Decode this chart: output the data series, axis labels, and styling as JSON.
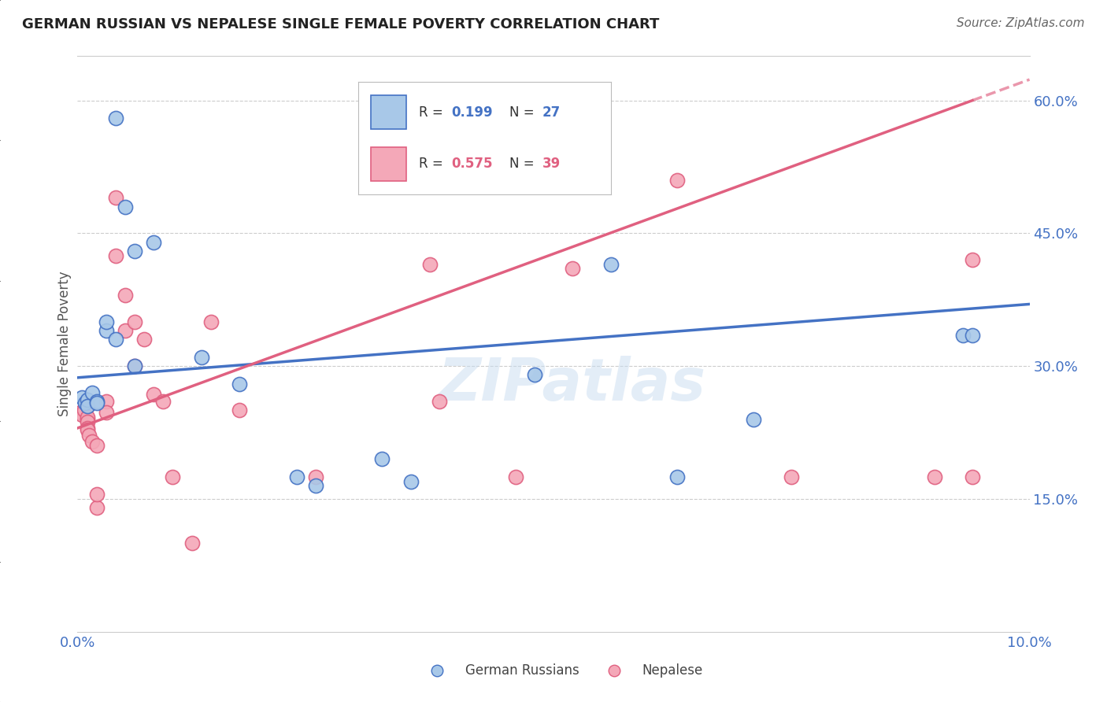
{
  "title": "GERMAN RUSSIAN VS NEPALESE SINGLE FEMALE POVERTY CORRELATION CHART",
  "source": "Source: ZipAtlas.com",
  "ylabel": "Single Female Poverty",
  "xlim": [
    0.0,
    0.1
  ],
  "ylim": [
    0.0,
    0.65
  ],
  "yticks": [
    0.15,
    0.3,
    0.45,
    0.6
  ],
  "ytick_labels": [
    "15.0%",
    "30.0%",
    "45.0%",
    "60.0%"
  ],
  "xticks": [
    0.0,
    0.02,
    0.04,
    0.06,
    0.08,
    0.1
  ],
  "xtick_labels": [
    "0.0%",
    "",
    "",
    "",
    "",
    "10.0%"
  ],
  "blue_R": "0.199",
  "blue_N": "27",
  "pink_R": "0.575",
  "pink_N": "39",
  "blue_color": "#A8C8E8",
  "pink_color": "#F4A8B8",
  "blue_line_color": "#4472C4",
  "pink_line_color": "#E06080",
  "watermark": "ZIPatlas",
  "blue_scatter": [
    [
      0.0005,
      0.265
    ],
    [
      0.0008,
      0.258
    ],
    [
      0.001,
      0.262
    ],
    [
      0.001,
      0.255
    ],
    [
      0.0015,
      0.27
    ],
    [
      0.002,
      0.26
    ],
    [
      0.002,
      0.258
    ],
    [
      0.003,
      0.34
    ],
    [
      0.003,
      0.35
    ],
    [
      0.004,
      0.33
    ],
    [
      0.004,
      0.58
    ],
    [
      0.005,
      0.48
    ],
    [
      0.006,
      0.3
    ],
    [
      0.006,
      0.43
    ],
    [
      0.008,
      0.44
    ],
    [
      0.013,
      0.31
    ],
    [
      0.017,
      0.28
    ],
    [
      0.023,
      0.175
    ],
    [
      0.025,
      0.165
    ],
    [
      0.032,
      0.195
    ],
    [
      0.035,
      0.17
    ],
    [
      0.048,
      0.29
    ],
    [
      0.056,
      0.415
    ],
    [
      0.063,
      0.175
    ],
    [
      0.071,
      0.24
    ],
    [
      0.093,
      0.335
    ],
    [
      0.094,
      0.335
    ]
  ],
  "pink_scatter": [
    [
      0.0003,
      0.248
    ],
    [
      0.0005,
      0.245
    ],
    [
      0.0007,
      0.25
    ],
    [
      0.001,
      0.255
    ],
    [
      0.001,
      0.24
    ],
    [
      0.001,
      0.242
    ],
    [
      0.001,
      0.237
    ],
    [
      0.001,
      0.23
    ],
    [
      0.001,
      0.228
    ],
    [
      0.0012,
      0.222
    ],
    [
      0.0015,
      0.215
    ],
    [
      0.002,
      0.21
    ],
    [
      0.002,
      0.14
    ],
    [
      0.002,
      0.155
    ],
    [
      0.003,
      0.26
    ],
    [
      0.003,
      0.248
    ],
    [
      0.004,
      0.49
    ],
    [
      0.004,
      0.425
    ],
    [
      0.005,
      0.38
    ],
    [
      0.005,
      0.34
    ],
    [
      0.006,
      0.35
    ],
    [
      0.006,
      0.3
    ],
    [
      0.007,
      0.33
    ],
    [
      0.008,
      0.268
    ],
    [
      0.009,
      0.26
    ],
    [
      0.01,
      0.175
    ],
    [
      0.012,
      0.1
    ],
    [
      0.014,
      0.35
    ],
    [
      0.017,
      0.25
    ],
    [
      0.025,
      0.175
    ],
    [
      0.037,
      0.415
    ],
    [
      0.038,
      0.26
    ],
    [
      0.046,
      0.175
    ],
    [
      0.052,
      0.41
    ],
    [
      0.063,
      0.51
    ],
    [
      0.075,
      0.175
    ],
    [
      0.09,
      0.175
    ],
    [
      0.094,
      0.42
    ],
    [
      0.094,
      0.175
    ]
  ]
}
